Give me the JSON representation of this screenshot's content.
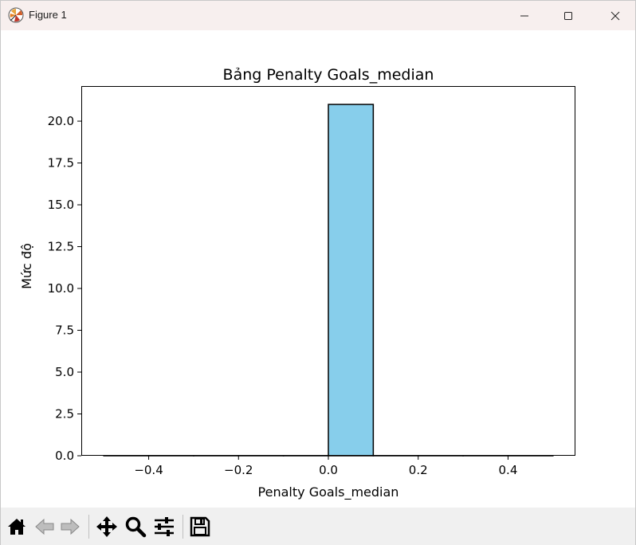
{
  "window": {
    "title": "Figure 1"
  },
  "toolbar": {
    "buttons": [
      {
        "name": "home-icon"
      },
      {
        "name": "back-icon"
      },
      {
        "name": "forward-icon"
      },
      {
        "name": "pan-icon"
      },
      {
        "name": "zoom-icon"
      },
      {
        "name": "configure-subplots-icon"
      },
      {
        "name": "save-icon"
      }
    ]
  },
  "chart_data": {
    "type": "bar",
    "title": "Bảng Penalty Goals_median",
    "xlabel": "Penalty Goals_median",
    "ylabel": "Mức độ",
    "xlim": [
      -0.55,
      0.55
    ],
    "ylim": [
      0,
      22.05
    ],
    "xticks": [
      -0.4,
      -0.2,
      0.0,
      0.2,
      0.4
    ],
    "xtick_labels": [
      "−0.4",
      "−0.2",
      "0.0",
      "0.2",
      "0.4"
    ],
    "yticks": [
      0,
      2.5,
      5.0,
      7.5,
      10.0,
      12.5,
      15.0,
      17.5,
      20.0
    ],
    "ytick_labels": [
      "0.0",
      "2.5",
      "5.0",
      "7.5",
      "10.0",
      "12.5",
      "15.0",
      "17.5",
      "20.0"
    ],
    "bins": [
      {
        "x0": -0.5,
        "x1": -0.4,
        "count": 0
      },
      {
        "x0": -0.4,
        "x1": -0.3,
        "count": 0
      },
      {
        "x0": -0.3,
        "x1": -0.2,
        "count": 0
      },
      {
        "x0": -0.2,
        "x1": -0.1,
        "count": 0
      },
      {
        "x0": -0.1,
        "x1": 0.0,
        "count": 0
      },
      {
        "x0": 0.0,
        "x1": 0.1,
        "count": 21
      },
      {
        "x0": 0.1,
        "x1": 0.2,
        "count": 0
      },
      {
        "x0": 0.2,
        "x1": 0.3,
        "count": 0
      },
      {
        "x0": 0.3,
        "x1": 0.4,
        "count": 0
      },
      {
        "x0": 0.4,
        "x1": 0.5,
        "count": 0
      }
    ],
    "bar_color": "#87ceeb",
    "edge_color": "#000000",
    "grid": false
  }
}
